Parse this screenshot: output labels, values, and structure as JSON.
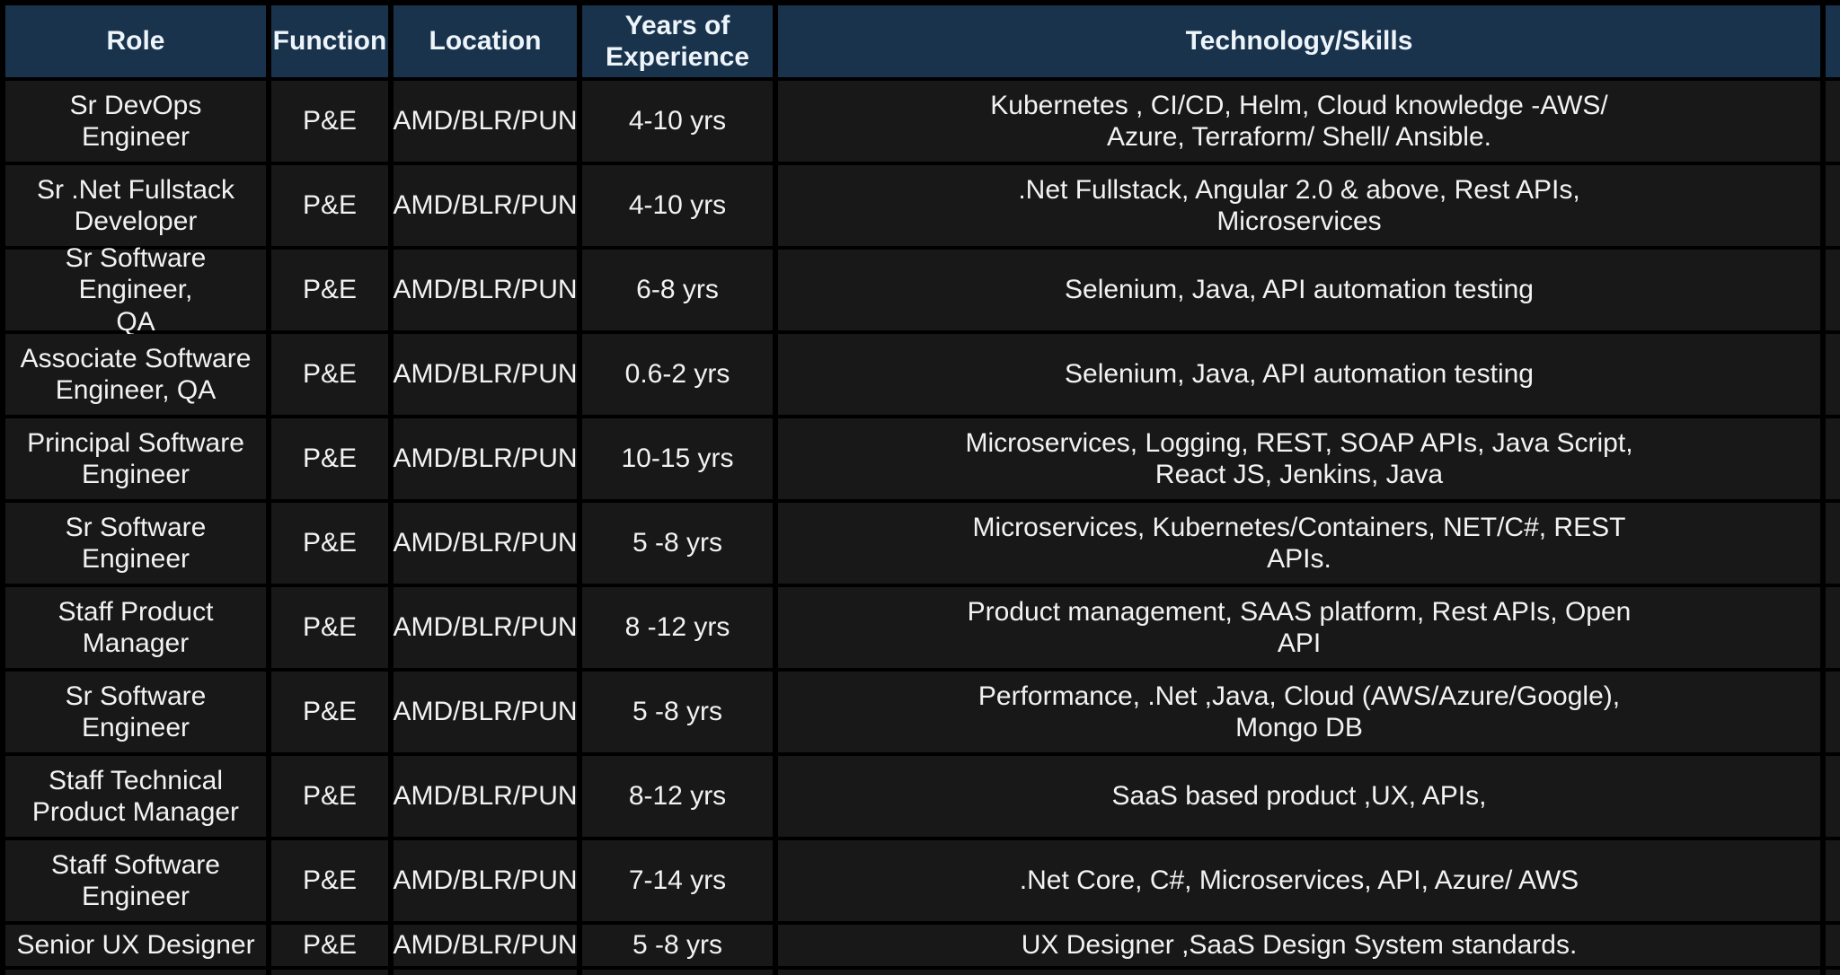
{
  "colors": {
    "border": "#000000",
    "header_bg": "#1a334d",
    "row_bg": "#181818",
    "header_text": "#eef5fa",
    "body_text": "#f2f2f2"
  },
  "table": {
    "headers": [
      "Role",
      "Function",
      "Location",
      "Years of\nExperience",
      "Technology/Skills",
      ""
    ],
    "rows": [
      {
        "role": "Sr DevOps Engineer",
        "function": "P&E",
        "location": "AMD/BLR/PUN",
        "experience": "4-10 yrs",
        "skills": "Kubernetes , CI/CD, Helm, Cloud knowledge -AWS/\nAzure, Terraform/ Shell/ Ansible.",
        "extra": ""
      },
      {
        "role": "Sr .Net Fullstack\nDeveloper",
        "function": "P&E",
        "location": "AMD/BLR/PUN",
        "experience": "4-10 yrs",
        "skills": ".Net Fullstack, Angular 2.0 & above, Rest APIs,\nMicroservices",
        "extra": ""
      },
      {
        "role": "Sr Software Engineer,\nQA",
        "function": "P&E",
        "location": "AMD/BLR/PUN",
        "experience": "6-8 yrs",
        "skills": "Selenium, Java, API automation testing",
        "extra": ""
      },
      {
        "role": "Associate Software\nEngineer, QA",
        "function": "P&E",
        "location": "AMD/BLR/PUN",
        "experience": "0.6-2 yrs",
        "skills": "Selenium, Java, API automation testing",
        "extra": ""
      },
      {
        "role": "Principal Software\nEngineer",
        "function": "P&E",
        "location": "AMD/BLR/PUN",
        "experience": "10-15 yrs",
        "skills": "Microservices, Logging, REST, SOAP APIs, Java Script,\nReact JS, Jenkins, Java",
        "extra": ""
      },
      {
        "role": "Sr Software Engineer",
        "function": "P&E",
        "location": "AMD/BLR/PUN",
        "experience": "5 -8 yrs",
        "skills": "Microservices, Kubernetes/Containers, NET/C#, REST\nAPIs.",
        "extra": ""
      },
      {
        "role": "Staff Product\nManager",
        "function": "P&E",
        "location": "AMD/BLR/PUN",
        "experience": "8 -12 yrs",
        "skills": "Product management, SAAS platform, Rest APIs, Open\nAPI",
        "extra": ""
      },
      {
        "role": "Sr Software Engineer",
        "function": "P&E",
        "location": "AMD/BLR/PUN",
        "experience": "5 -8 yrs",
        "skills": "Performance, .Net ,Java, Cloud (AWS/Azure/Google),\nMongo DB",
        "extra": ""
      },
      {
        "role": "Staff Technical\nProduct Manager",
        "function": "P&E",
        "location": "AMD/BLR/PUN",
        "experience": "8-12 yrs",
        "skills": "SaaS based product ,UX, APIs,",
        "extra": ""
      },
      {
        "role": "Staff Software\nEngineer",
        "function": "P&E",
        "location": "AMD/BLR/PUN",
        "experience": "7-14 yrs",
        "skills": ".Net Core, C#, Microservices, API, Azure/ AWS",
        "extra": ""
      },
      {
        "role": "Senior UX Designer",
        "function": "P&E",
        "location": "AMD/BLR/PUN",
        "experience": "5 -8 yrs",
        "skills": "UX Designer ,SaaS Design System standards.",
        "extra": ""
      }
    ]
  }
}
